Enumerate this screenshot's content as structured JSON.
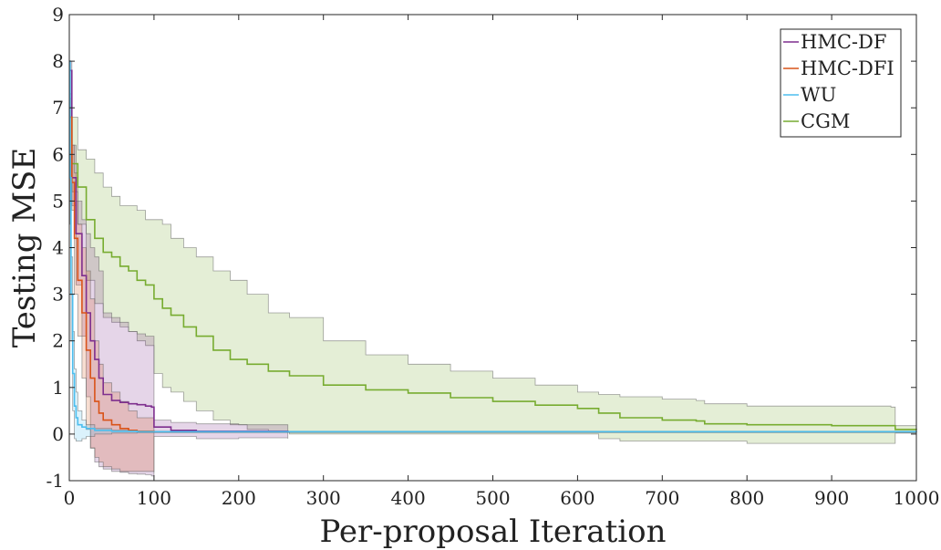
{
  "chart_data": {
    "type": "line",
    "xlabel": "Per-proposal Iteration",
    "ylabel": "Testing MSE",
    "xlim": [
      0,
      1000
    ],
    "ylim": [
      -1,
      9
    ],
    "xticks": [
      "0",
      "100",
      "200",
      "300",
      "400",
      "500",
      "600",
      "700",
      "800",
      "900",
      "1000"
    ],
    "yticks": [
      "-1",
      "0",
      "1",
      "2",
      "3",
      "4",
      "5",
      "6",
      "7",
      "8",
      "9"
    ],
    "grid": false,
    "legend_position": "top-right",
    "series": [
      {
        "name": "HMC-DF",
        "color": "#7e2f8e",
        "x": [
          0,
          3,
          8,
          15,
          20,
          25,
          30,
          35,
          40,
          50,
          60,
          70,
          80,
          90,
          97,
          100,
          120,
          150,
          200,
          258
        ],
        "mean": [
          7.8,
          5.5,
          4.3,
          3.4,
          2.6,
          2.0,
          1.6,
          1.2,
          0.85,
          0.72,
          0.68,
          0.65,
          0.63,
          0.6,
          0.58,
          0.15,
          0.08,
          0.06,
          0.06,
          0.05
        ],
        "upper": [
          8.0,
          6.2,
          5.0,
          4.6,
          4.3,
          4.0,
          3.8,
          3.5,
          2.6,
          2.5,
          2.4,
          2.2,
          2.15,
          2.1,
          2.1,
          0.3,
          0.25,
          0.22,
          0.2,
          0.2
        ],
        "lower": [
          7.0,
          4.9,
          3.2,
          2.1,
          0.8,
          -0.3,
          -0.6,
          -0.7,
          -0.75,
          -0.8,
          -0.82,
          -0.85,
          -0.86,
          -0.87,
          -0.9,
          -0.05,
          -0.05,
          -0.1,
          -0.08,
          -0.1
        ]
      },
      {
        "name": "HMC-DFI",
        "color": "#d95319",
        "x": [
          0,
          3,
          6,
          10,
          15,
          20,
          25,
          30,
          35,
          40,
          50,
          60,
          70,
          80,
          100
        ],
        "mean": [
          6.8,
          5.4,
          4.2,
          3.3,
          2.6,
          1.8,
          1.2,
          0.7,
          0.45,
          0.3,
          0.2,
          0.12,
          0.08,
          0.06,
          0.05
        ],
        "upper": [
          7.2,
          6.2,
          5.6,
          4.5,
          4.0,
          3.5,
          2.9,
          2.0,
          1.5,
          1.1,
          0.9,
          0.7,
          0.5,
          0.35,
          0.3
        ],
        "lower": [
          6.0,
          4.8,
          3.0,
          2.1,
          1.2,
          0.1,
          -0.3,
          -0.5,
          -0.6,
          -0.7,
          -0.75,
          -0.8,
          -0.8,
          -0.8,
          -0.82
        ]
      },
      {
        "name": "WU",
        "color": "#4dbeee",
        "x": [
          0,
          1,
          2,
          4,
          6,
          8,
          10,
          15,
          20,
          30,
          50,
          80,
          1000
        ],
        "mean": [
          8.0,
          5.5,
          3.0,
          1.3,
          0.6,
          0.35,
          0.2,
          0.15,
          0.12,
          0.08,
          0.06,
          0.05,
          0.04
        ],
        "upper": [
          8.0,
          6.0,
          3.8,
          2.2,
          1.4,
          0.9,
          0.5,
          0.3,
          0.2,
          0.12,
          0.08,
          0.06,
          0.05
        ],
        "lower": [
          7.8,
          4.5,
          2.0,
          0.5,
          -0.1,
          -0.15,
          -0.15,
          -0.1,
          -0.05,
          0.0,
          0.02,
          0.03,
          0.03
        ]
      },
      {
        "name": "CGM",
        "color": "#77ac30",
        "x": [
          0,
          3,
          10,
          20,
          30,
          40,
          50,
          60,
          70,
          80,
          90,
          100,
          110,
          120,
          135,
          150,
          170,
          190,
          210,
          235,
          260,
          300,
          350,
          400,
          450,
          500,
          550,
          600,
          625,
          650,
          700,
          740,
          750,
          800,
          900,
          970,
          975,
          1000
        ],
        "mean": [
          6.8,
          5.8,
          5.3,
          4.6,
          4.2,
          3.9,
          3.8,
          3.6,
          3.5,
          3.3,
          3.2,
          2.9,
          2.7,
          2.55,
          2.3,
          2.1,
          1.8,
          1.6,
          1.5,
          1.35,
          1.25,
          1.05,
          0.95,
          0.88,
          0.78,
          0.7,
          0.62,
          0.55,
          0.45,
          0.35,
          0.3,
          0.28,
          0.22,
          0.2,
          0.18,
          0.18,
          0.1,
          0.09
        ],
        "upper": [
          7.3,
          6.8,
          6.1,
          5.9,
          5.6,
          5.3,
          5.1,
          4.9,
          4.9,
          4.8,
          4.6,
          4.6,
          4.5,
          4.2,
          4.0,
          3.8,
          3.5,
          3.3,
          3.0,
          2.6,
          2.5,
          2.0,
          1.7,
          1.5,
          1.35,
          1.2,
          1.05,
          0.9,
          0.85,
          0.8,
          0.75,
          0.72,
          0.65,
          0.6,
          0.6,
          0.58,
          0.18,
          0.16
        ],
        "lower": [
          6.0,
          5.2,
          4.5,
          3.3,
          2.8,
          2.5,
          2.4,
          2.3,
          2.2,
          2.0,
          1.9,
          1.3,
          1.0,
          0.9,
          0.7,
          0.5,
          0.3,
          0.2,
          0.1,
          0.05,
          0.0,
          0.0,
          0.0,
          0.0,
          0.0,
          0.0,
          0.0,
          0.0,
          -0.1,
          -0.15,
          -0.15,
          -0.15,
          -0.15,
          -0.2,
          -0.2,
          -0.2,
          0.02,
          0.02
        ]
      }
    ]
  }
}
